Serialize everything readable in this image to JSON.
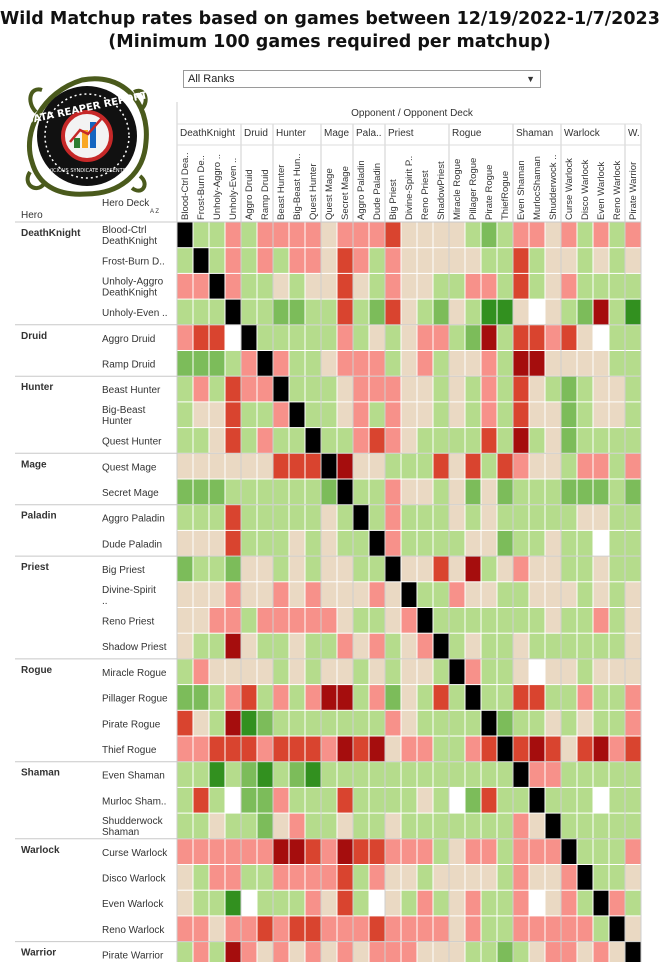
{
  "title": {
    "line1": "Wild Matchup rates based on games between 12/19/2022-1/7/2023",
    "line2": "(Minimum 100 games required per matchup)"
  },
  "filter": {
    "selected": "All Ranks"
  },
  "logo": {
    "text": "DATA REAPER REPORT",
    "subtext": "VICIOUS SYNDICATE PRESENTS"
  },
  "headers": {
    "opponent": "Opponent / Opponent Deck",
    "hero": "Hero",
    "deck": "Hero Deck",
    "sort_icon": "A Z"
  },
  "colors": {
    "-3": "#a50d0d",
    "-2": "#d9442f",
    "-1": "#f7918a",
    "0": "#ead9c3",
    "1": "#b5dc8c",
    "2": "#7cbc5a",
    "3": "#32901f",
    "X": "#000000",
    "N": "#ffffff"
  },
  "chart_data": {
    "type": "heatmap",
    "scale_note": "cell codes: -3 strongly unfavored ... 3 strongly favored; X mirror; N no data",
    "col_groups": [
      {
        "name": "DeathKnight",
        "count": 4
      },
      {
        "name": "Druid",
        "count": 2
      },
      {
        "name": "Hunter",
        "count": 3
      },
      {
        "name": "Mage",
        "count": 2
      },
      {
        "name": "Pala..",
        "count": 2
      },
      {
        "name": "Priest",
        "count": 4
      },
      {
        "name": "Rogue",
        "count": 4
      },
      {
        "name": "Shaman",
        "count": 3
      },
      {
        "name": "Warlock",
        "count": 4
      },
      {
        "name": "W..",
        "count": 1
      }
    ],
    "columns": [
      "Blood-Ctrl Dea..",
      "Frost-Burn De..",
      "Unholy-Aggro ..",
      "Unholy-Even ..",
      "Aggro Druid",
      "Ramp Druid",
      "Beast Hunter",
      "Big-Beast Hun..",
      "Quest Hunter",
      "Quest Mage",
      "Secret Mage",
      "Aggro Paladin",
      "Dude Paladin",
      "Big Priest",
      "Divine-Spirit P..",
      "Reno Priest",
      "ShadowPriest",
      "Miracle Rogue",
      "Pillager Rogue",
      "Pirate Rogue",
      "ThiefRogue",
      "Even Shaman",
      "MurlocShaman",
      "Shudderwock ..",
      "Curse Warlock",
      "Disco Warlock",
      "Even Warlock",
      "Reno Warlock",
      "Pirate Warrior"
    ],
    "row_groups": [
      {
        "hero": "DeathKnight",
        "decks": [
          "Blood-Ctrl DeathKnight",
          "Frost-Burn D..",
          "Unholy-Aggro DeathKnight",
          "Unholy-Even .."
        ]
      },
      {
        "hero": "Druid",
        "decks": [
          "Aggro Druid",
          "Ramp Druid"
        ]
      },
      {
        "hero": "Hunter",
        "decks": [
          "Beast Hunter",
          "Big-Beast Hunter",
          "Quest Hunter"
        ]
      },
      {
        "hero": "Mage",
        "decks": [
          "Quest Mage",
          "Secret Mage"
        ]
      },
      {
        "hero": "Paladin",
        "decks": [
          "Aggro Paladin",
          "Dude Paladin"
        ]
      },
      {
        "hero": "Priest",
        "decks": [
          "Big Priest",
          "Divine-Spirit ..",
          "Reno Priest",
          "Shadow Priest"
        ]
      },
      {
        "hero": "Rogue",
        "decks": [
          "Miracle Rogue",
          "Pillager Rogue",
          "Pirate Rogue",
          "Thief Rogue"
        ]
      },
      {
        "hero": "Shaman",
        "decks": [
          "Even Shaman",
          "Murloc Sham..",
          "Shudderwock Shaman"
        ]
      },
      {
        "hero": "Warlock",
        "decks": [
          "Curse Warlock",
          "Disco Warlock",
          "Even Warlock",
          "Reno Warlock"
        ]
      },
      {
        "hero": "Warrior",
        "decks": [
          "Pirate Warrior"
        ]
      }
    ],
    "values": [
      [
        "X",
        1,
        1,
        -1,
        1,
        -1,
        -1,
        -1,
        -1,
        0,
        -1,
        -1,
        -1,
        -2,
        0,
        0,
        0,
        0,
        1,
        2,
        1,
        -1,
        -1,
        0,
        -1,
        1,
        -1,
        1,
        -1
      ],
      [
        1,
        "X",
        1,
        -1,
        1,
        -1,
        1,
        -1,
        -1,
        0,
        -2,
        -1,
        1,
        -1,
        0,
        0,
        0,
        0,
        0,
        1,
        1,
        -2,
        1,
        0,
        0,
        1,
        0,
        1,
        0
      ],
      [
        -1,
        -1,
        "X",
        -1,
        1,
        1,
        0,
        1,
        0,
        0,
        -2,
        0,
        1,
        -1,
        0,
        0,
        1,
        1,
        -1,
        -1,
        1,
        -2,
        1,
        0,
        -1,
        1,
        1,
        1,
        1
      ],
      [
        1,
        1,
        1,
        "X",
        1,
        1,
        2,
        2,
        1,
        1,
        -2,
        1,
        2,
        -2,
        0,
        1,
        2,
        0,
        1,
        3,
        3,
        0,
        "N",
        0,
        1,
        2,
        -3,
        1,
        3
      ],
      [
        -1,
        -2,
        -2,
        "N",
        "X",
        1,
        1,
        1,
        1,
        1,
        -1,
        1,
        0,
        1,
        0,
        -1,
        -1,
        1,
        2,
        -3,
        1,
        -2,
        -2,
        -1,
        -2,
        0,
        "N",
        1,
        1
      ],
      [
        2,
        2,
        2,
        1,
        -1,
        "X",
        -1,
        1,
        1,
        0,
        -1,
        -1,
        -1,
        1,
        0,
        -1,
        1,
        0,
        0,
        -1,
        1,
        -3,
        -3,
        0,
        0,
        0,
        0,
        1,
        1
      ],
      [
        1,
        -1,
        1,
        -2,
        -1,
        -1,
        "X",
        1,
        1,
        1,
        0,
        -1,
        -1,
        -1,
        0,
        0,
        1,
        0,
        1,
        -1,
        1,
        -2,
        0,
        1,
        2,
        1,
        0,
        0,
        1
      ],
      [
        1,
        0,
        0,
        -2,
        1,
        1,
        -1,
        "X",
        1,
        1,
        0,
        -1,
        1,
        -1,
        0,
        0,
        1,
        0,
        1,
        -1,
        1,
        -2,
        0,
        0,
        2,
        1,
        0,
        0,
        1
      ],
      [
        1,
        1,
        0,
        -2,
        1,
        -1,
        1,
        1,
        "X",
        1,
        1,
        -1,
        -2,
        -1,
        0,
        1,
        1,
        1,
        1,
        -2,
        1,
        -3,
        1,
        0,
        2,
        1,
        1,
        1,
        1
      ],
      [
        0,
        0,
        0,
        0,
        0,
        0,
        -2,
        -2,
        -2,
        "X",
        -3,
        0,
        0,
        1,
        1,
        1,
        -2,
        0,
        -2,
        1,
        -2,
        -1,
        0,
        0,
        1,
        -1,
        -1,
        1,
        -1
      ],
      [
        2,
        2,
        2,
        1,
        1,
        1,
        1,
        1,
        1,
        2,
        "X",
        1,
        1,
        -1,
        0,
        0,
        1,
        0,
        2,
        0,
        2,
        1,
        1,
        1,
        2,
        2,
        2,
        1,
        2
      ],
      [
        1,
        1,
        1,
        -2,
        1,
        1,
        1,
        1,
        1,
        0,
        1,
        "X",
        1,
        -1,
        1,
        1,
        1,
        0,
        1,
        0,
        1,
        1,
        1,
        1,
        1,
        0,
        0,
        1,
        1
      ],
      [
        0,
        0,
        0,
        -2,
        1,
        1,
        1,
        0,
        1,
        0,
        1,
        1,
        "X",
        -1,
        1,
        1,
        1,
        1,
        0,
        0,
        2,
        1,
        1,
        0,
        1,
        1,
        "N",
        1,
        1
      ],
      [
        2,
        1,
        1,
        2,
        0,
        0,
        1,
        0,
        1,
        0,
        0,
        1,
        1,
        "X",
        0,
        0,
        -2,
        0,
        -3,
        1,
        0,
        -1,
        0,
        0,
        1,
        1,
        0,
        1,
        1
      ],
      [
        0,
        0,
        0,
        -1,
        0,
        0,
        -1,
        0,
        -1,
        0,
        0,
        0,
        -1,
        0,
        "X",
        1,
        1,
        -1,
        0,
        0,
        1,
        1,
        0,
        0,
        0,
        1,
        0,
        1,
        0
      ],
      [
        0,
        0,
        -1,
        -1,
        1,
        -1,
        -1,
        -1,
        -1,
        -1,
        0,
        1,
        1,
        0,
        -1,
        "X",
        1,
        1,
        1,
        1,
        1,
        1,
        1,
        0,
        1,
        1,
        -1,
        1,
        0
      ],
      [
        0,
        1,
        1,
        -3,
        0,
        1,
        1,
        0,
        1,
        1,
        -1,
        0,
        -1,
        1,
        0,
        -1,
        "X",
        1,
        0,
        1,
        1,
        0,
        1,
        1,
        1,
        1,
        1,
        1,
        0
      ],
      [
        1,
        -1,
        0,
        0,
        0,
        0,
        1,
        0,
        1,
        0,
        0,
        1,
        0,
        1,
        0,
        0,
        1,
        "X",
        -1,
        1,
        1,
        0,
        "N",
        0,
        0,
        1,
        0,
        0,
        0
      ],
      [
        2,
        2,
        1,
        -1,
        -2,
        1,
        -1,
        1,
        -1,
        -3,
        -3,
        1,
        -1,
        2,
        0,
        1,
        -2,
        1,
        "X",
        1,
        1,
        -2,
        -2,
        1,
        1,
        -1,
        1,
        1,
        -1
      ],
      [
        -2,
        0,
        1,
        -3,
        3,
        2,
        1,
        1,
        1,
        1,
        1,
        1,
        1,
        -1,
        0,
        1,
        1,
        1,
        1,
        "X",
        2,
        1,
        1,
        0,
        1,
        0,
        1,
        1,
        -1
      ],
      [
        -1,
        -1,
        -2,
        -2,
        -2,
        -1,
        -2,
        -2,
        -2,
        -1,
        -3,
        -2,
        -3,
        0,
        -1,
        -1,
        1,
        1,
        -1,
        -2,
        "X",
        -2,
        -3,
        -2,
        0,
        -2,
        -3,
        -1,
        -2
      ],
      [
        1,
        1,
        3,
        1,
        2,
        3,
        1,
        2,
        3,
        1,
        1,
        1,
        1,
        1,
        1,
        1,
        1,
        1,
        1,
        1,
        1,
        "X",
        -1,
        -1,
        1,
        1,
        1,
        1,
        1
      ],
      [
        1,
        -2,
        1,
        "N",
        2,
        2,
        -1,
        1,
        1,
        1,
        -2,
        1,
        1,
        1,
        1,
        0,
        1,
        "N",
        2,
        -2,
        1,
        1,
        "X",
        1,
        1,
        1,
        "N",
        1,
        1
      ],
      [
        1,
        1,
        0,
        1,
        1,
        2,
        0,
        -1,
        1,
        1,
        0,
        1,
        1,
        0,
        1,
        1,
        1,
        1,
        1,
        1,
        1,
        -1,
        0,
        "X",
        1,
        1,
        1,
        1,
        1
      ],
      [
        -1,
        -1,
        -1,
        -1,
        -1,
        -1,
        -3,
        -3,
        -2,
        -1,
        -3,
        -2,
        -2,
        -1,
        -1,
        -1,
        1,
        0,
        -1,
        -1,
        1,
        -1,
        -1,
        -1,
        "X",
        1,
        1,
        1,
        -1
      ],
      [
        0,
        1,
        -1,
        -1,
        1,
        1,
        -1,
        -1,
        -1,
        -1,
        -2,
        1,
        -1,
        0,
        0,
        1,
        0,
        0,
        0,
        0,
        1,
        -1,
        0,
        0,
        -1,
        "X",
        1,
        1,
        0
      ],
      [
        0,
        1,
        1,
        3,
        "N",
        1,
        1,
        1,
        -1,
        0,
        -2,
        1,
        "N",
        0,
        1,
        -1,
        1,
        0,
        -1,
        1,
        1,
        -1,
        "N",
        0,
        -1,
        1,
        "X",
        -1,
        1
      ],
      [
        -1,
        -1,
        0,
        -1,
        -1,
        -2,
        -1,
        -2,
        -2,
        -1,
        -1,
        -1,
        -2,
        -1,
        -1,
        -1,
        -1,
        0,
        -1,
        1,
        1,
        -1,
        -1,
        -1,
        -1,
        -1,
        1,
        "X",
        0
      ],
      [
        1,
        -1,
        1,
        -3,
        -1,
        0,
        -1,
        0,
        -1,
        0,
        -1,
        0,
        -1,
        -1,
        -1,
        0,
        0,
        0,
        1,
        1,
        2,
        1,
        0,
        -1,
        -1,
        0,
        -1,
        0,
        "X"
      ]
    ]
  }
}
